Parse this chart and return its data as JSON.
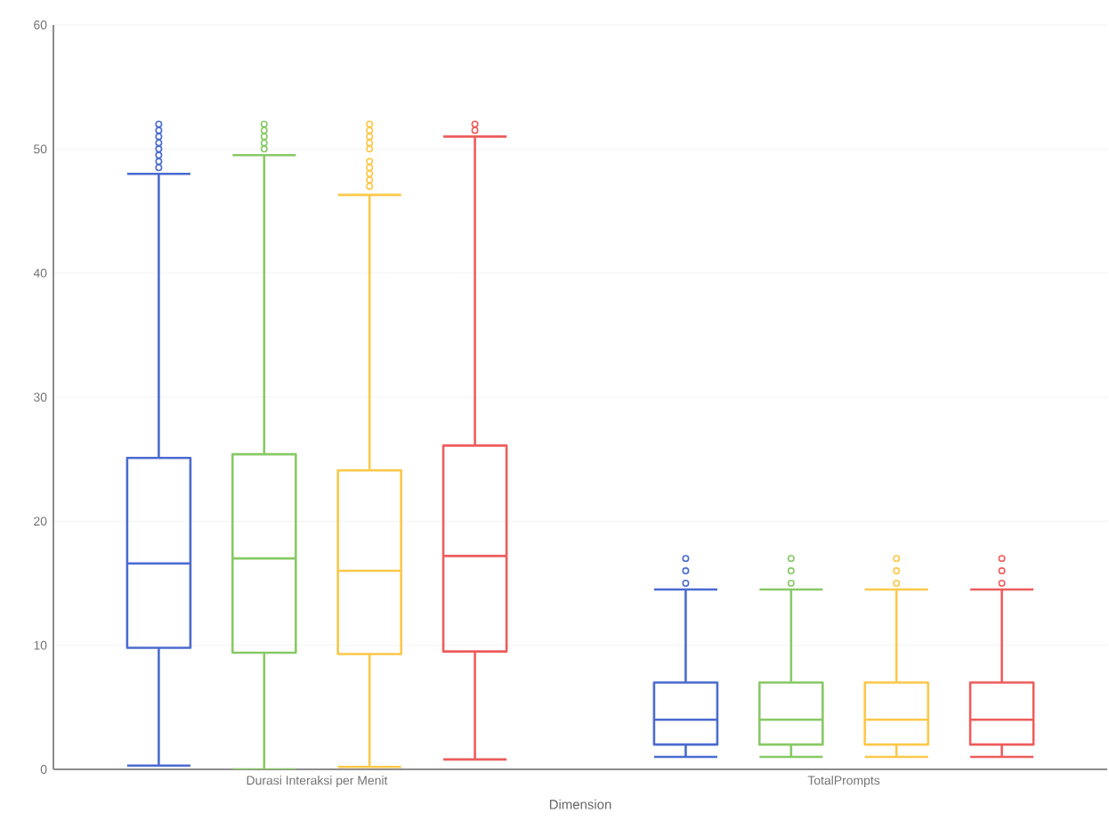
{
  "chart_data": {
    "type": "box",
    "xlabel": "Dimension",
    "categories": [
      "Durasi Interaksi per Menit",
      "TotalPrompts"
    ],
    "ylim": [
      0,
      60
    ],
    "yticks": [
      0,
      10,
      20,
      30,
      40,
      50,
      60
    ],
    "grid": "y",
    "series": [
      {
        "color": "#4a6bd0",
        "boxes": [
          {
            "low": 0.3,
            "q1": 9.8,
            "median": 16.6,
            "q3": 25.1,
            "high": 48.0,
            "outliers": [
              48.5,
              49,
              49.5,
              50,
              50.5,
              51,
              51.5,
              52
            ]
          },
          {
            "low": 1,
            "q1": 2,
            "median": 4,
            "q3": 7,
            "high": 14.5,
            "outliers": [
              15,
              16,
              17
            ]
          }
        ]
      },
      {
        "color": "#88c966",
        "boxes": [
          {
            "low": 0,
            "q1": 9.4,
            "median": 17.0,
            "q3": 25.4,
            "high": 49.5,
            "outliers": [
              50,
              50.5,
              51,
              51.5,
              52
            ]
          },
          {
            "low": 1,
            "q1": 2,
            "median": 4,
            "q3": 7,
            "high": 14.5,
            "outliers": [
              15,
              16,
              17
            ]
          }
        ]
      },
      {
        "color": "#fcc84a",
        "boxes": [
          {
            "low": 0.2,
            "q1": 9.3,
            "median": 16.0,
            "q3": 24.1,
            "high": 46.3,
            "outliers": [
              47,
              47.5,
              48,
              48.5,
              49,
              50,
              50.5,
              51,
              51.5,
              52
            ]
          },
          {
            "low": 1,
            "q1": 2,
            "median": 4,
            "q3": 7,
            "high": 14.5,
            "outliers": [
              15,
              16,
              17
            ]
          }
        ]
      },
      {
        "color": "#ee5c5c",
        "boxes": [
          {
            "low": 0.8,
            "q1": 9.5,
            "median": 17.2,
            "q3": 26.1,
            "high": 51.0,
            "outliers": [
              51.5,
              52
            ]
          },
          {
            "low": 1,
            "q1": 2,
            "median": 4,
            "q3": 7,
            "high": 14.5,
            "outliers": [
              15,
              16,
              17
            ]
          }
        ]
      }
    ]
  }
}
